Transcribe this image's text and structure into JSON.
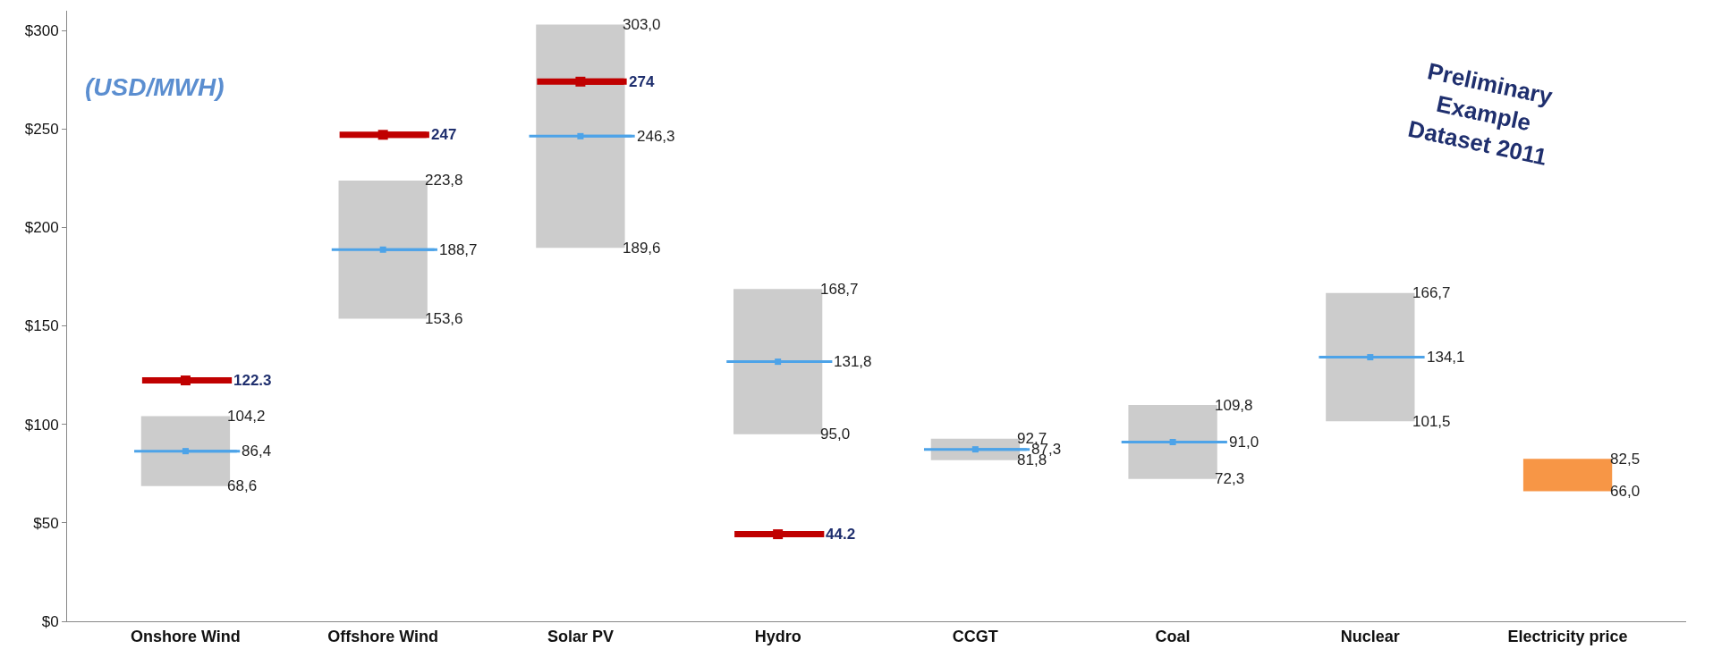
{
  "chart_data": {
    "type": "bar",
    "categories": [
      "Onshore Wind",
      "Offshore Wind",
      "Solar PV",
      "Hydro",
      "CCGT",
      "Coal",
      "Nuclear",
      "Electricity price"
    ],
    "series": [
      {
        "type": "bar",
        "base": [
          68.6,
          153.6,
          189.6,
          95.0,
          81.8,
          72.3,
          101.5,
          66.0
        ],
        "values": [
          35.6,
          70.2,
          113.4,
          73.7,
          10.9,
          37.5,
          65.2,
          16.5
        ],
        "colors": [
          "#cccccc",
          "#cccccc",
          "#cccccc",
          "#cccccc",
          "#cccccc",
          "#cccccc",
          "#cccccc",
          "#f79646"
        ]
      },
      {
        "type": "scatter",
        "color": "#4da3e8",
        "values": [
          86.4,
          188.7,
          246.3,
          131.8,
          87.3,
          91.0,
          134.1,
          null
        ]
      },
      {
        "type": "scatter",
        "color": "#c00000",
        "values": [
          122.3,
          247,
          274,
          44.2,
          null,
          null,
          null,
          null
        ]
      }
    ],
    "ylim": [
      0,
      310
    ],
    "yticks": [
      {
        "value": 0,
        "label": "$0"
      },
      {
        "value": 50,
        "label": "$50"
      },
      {
        "value": 100,
        "label": "$100"
      },
      {
        "value": 150,
        "label": "$150"
      },
      {
        "value": 200,
        "label": "$200"
      },
      {
        "value": 250,
        "label": "$250"
      },
      {
        "value": 300,
        "label": "$300"
      }
    ],
    "grid": false,
    "annotations": [
      "(USD/MWH)",
      "Preliminary Example Dataset 2011",
      {
        "text": "104,2",
        "x": "Onshore Wind",
        "y": 104.2
      },
      {
        "text": "68,6",
        "x": "Onshore Wind",
        "y": 68.6
      },
      {
        "text": "223,8",
        "x": "Offshore Wind",
        "y": 223.8
      },
      {
        "text": "153,6",
        "x": "Offshore Wind",
        "y": 153.6
      },
      {
        "text": "303,0",
        "x": "Solar PV",
        "y": 303.0
      },
      {
        "text": "189,6",
        "x": "Solar PV",
        "y": 189.6
      },
      {
        "text": "168,7",
        "x": "Hydro",
        "y": 168.7
      },
      {
        "text": "95,0",
        "x": "Hydro",
        "y": 95.0
      },
      {
        "text": "92,7",
        "x": "CCGT",
        "y": 92.7
      },
      {
        "text": "81,8",
        "x": "CCGT",
        "y": 81.8
      },
      {
        "text": "109,8",
        "x": "Coal",
        "y": 109.8
      },
      {
        "text": "72,3",
        "x": "Coal",
        "y": 72.3
      },
      {
        "text": "166,7",
        "x": "Nuclear",
        "y": 166.7
      },
      {
        "text": "101,5",
        "x": "Nuclear",
        "y": 101.5
      },
      {
        "text": "82,5",
        "x": "Electricity price",
        "y": 82.5
      },
      {
        "text": "66,0",
        "x": "Electricity price",
        "y": 66.0
      },
      {
        "text": "86,4",
        "x": "Onshore Wind",
        "y": 86.4
      },
      {
        "text": "188,7",
        "x": "Offshore Wind",
        "y": 188.7
      },
      {
        "text": "246,3",
        "x": "Solar PV",
        "y": 246.3
      },
      {
        "text": "131,8",
        "x": "Hydro",
        "y": 131.8
      },
      {
        "text": "87,3",
        "x": "CCGT",
        "y": 87.3
      },
      {
        "text": "91,0",
        "x": "Coal",
        "y": 91.0
      },
      {
        "text": "134,1",
        "x": "Nuclear",
        "y": 134.1
      },
      {
        "text": "122.3",
        "x": "Onshore Wind",
        "y": 122.3
      },
      {
        "text": "247",
        "x": "Offshore Wind",
        "y": 247
      },
      {
        "text": "274",
        "x": "Solar PV",
        "y": 274
      },
      {
        "text": "44.2",
        "x": "Hydro",
        "y": 44.2
      }
    ]
  }
}
